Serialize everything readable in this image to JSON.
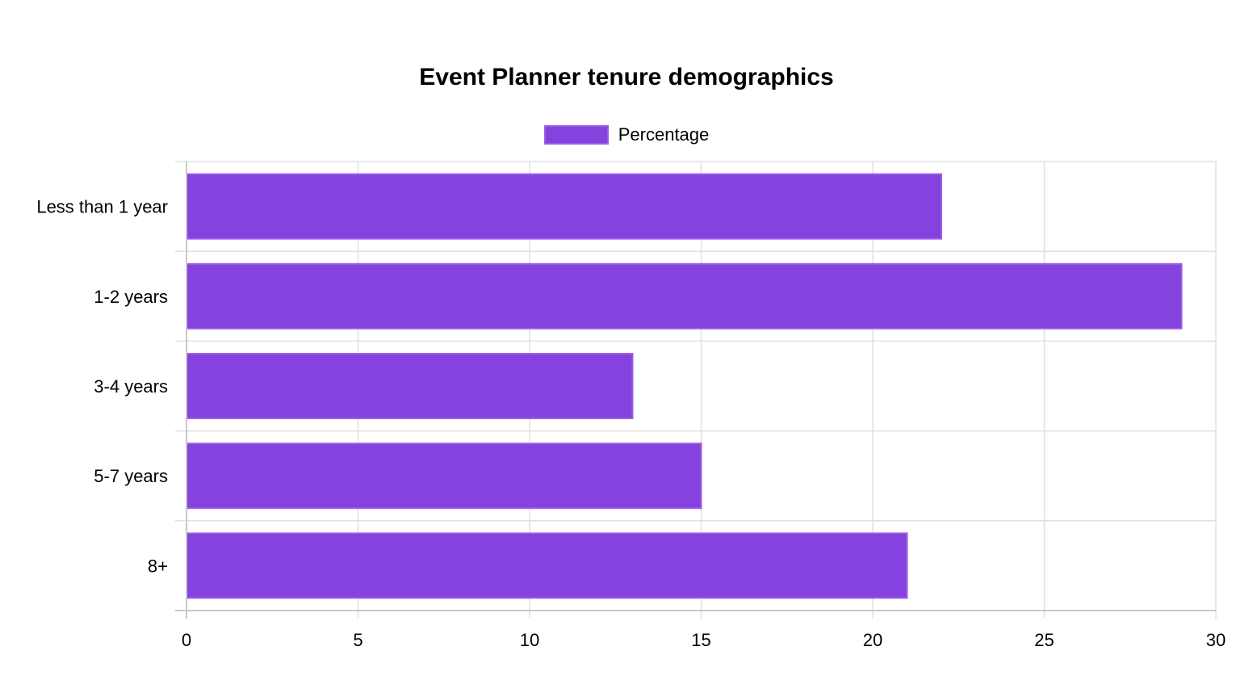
{
  "chart_data": {
    "type": "bar",
    "orientation": "horizontal",
    "title": "Event Planner tenure demographics",
    "categories": [
      "Less than 1 year",
      "1-2 years",
      "3-4 years",
      "5-7 years",
      "8+"
    ],
    "series": [
      {
        "name": "Percentage",
        "values": [
          22,
          29,
          13,
          15,
          21
        ],
        "color": "#8542de",
        "border_color": "#9a5ee6"
      }
    ],
    "xlim": [
      0,
      30
    ],
    "x_ticks": [
      "0",
      "5",
      "10",
      "15",
      "20",
      "25",
      "30"
    ],
    "xlabel": "",
    "ylabel": "",
    "grid": true,
    "legend_position": "top-center"
  }
}
